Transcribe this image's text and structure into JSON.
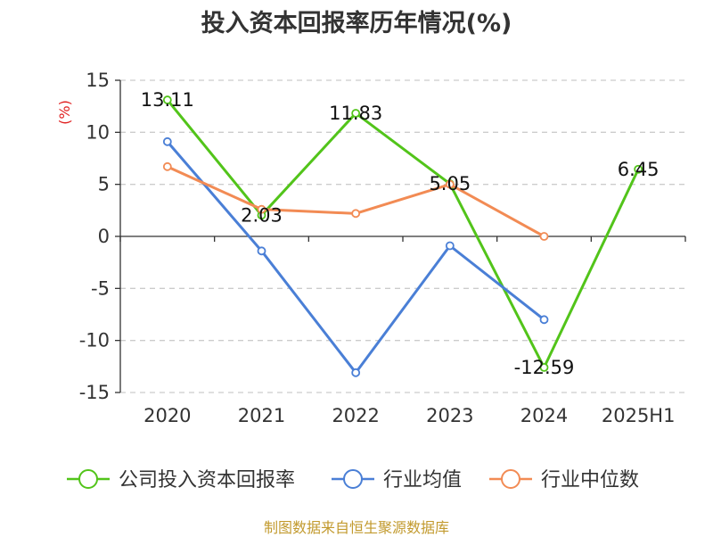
{
  "chart_data": {
    "type": "line",
    "title": "投入资本回报率历年情况(%)",
    "ylabel": "(%)",
    "xlabel": "",
    "categories": [
      "2020",
      "2021",
      "2022",
      "2023",
      "2024",
      "2025H1"
    ],
    "ylim": [
      -15,
      15
    ],
    "yticks": [
      15,
      10,
      5,
      0,
      -5,
      -10,
      -15
    ],
    "grid": true,
    "legend_position": "bottom",
    "series": [
      {
        "name": "公司投入资本回报率",
        "color": "#52c41a",
        "values": [
          13.11,
          2.03,
          11.83,
          5.05,
          -12.59,
          6.45
        ],
        "labels": [
          "13.11",
          "2.03",
          "11.83",
          "5.05",
          "-12.59",
          "6.45"
        ]
      },
      {
        "name": "行业均值",
        "color": "#4a7fd6",
        "values": [
          9.1,
          -1.4,
          -13.1,
          -0.9,
          -8.0,
          null
        ]
      },
      {
        "name": "行业中位数",
        "color": "#f28b54",
        "values": [
          6.7,
          2.6,
          2.2,
          5.0,
          0.0,
          null
        ]
      }
    ]
  },
  "footer": {
    "source": "制图数据来自恒生聚源数据库"
  }
}
